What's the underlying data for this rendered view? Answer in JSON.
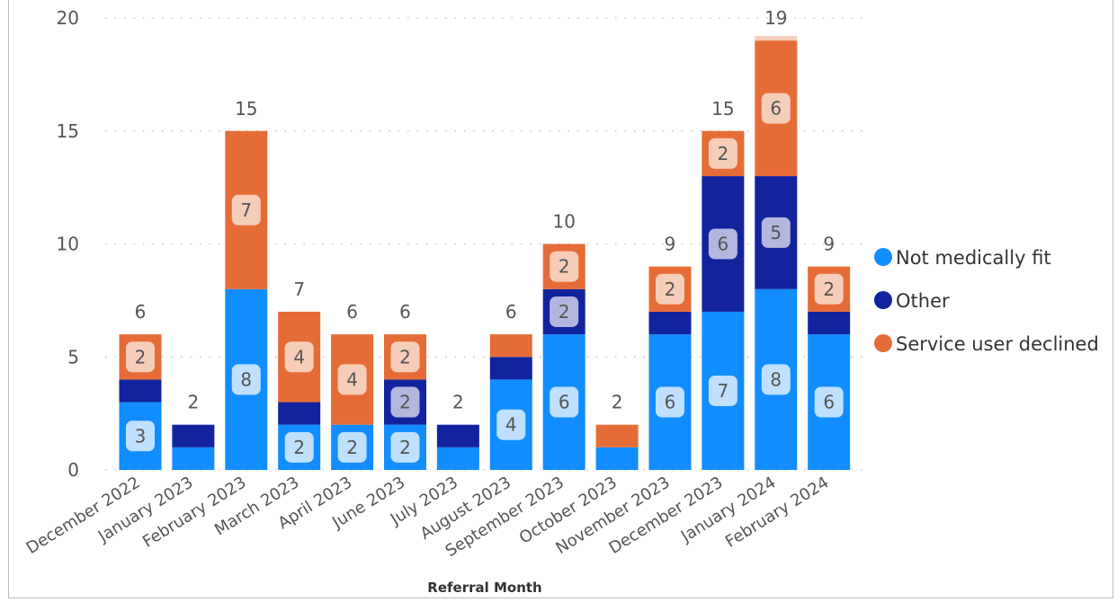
{
  "chart_data": {
    "type": "bar",
    "stacked": true,
    "title": "",
    "xlabel": "Referral Month",
    "ylabel": "",
    "ylim": [
      0,
      20
    ],
    "yticks": [
      0,
      5,
      10,
      15,
      20
    ],
    "grid": true,
    "legend_position": "right",
    "categories": [
      "December 2022",
      "January 2023",
      "February 2023",
      "March 2023",
      "April 2023",
      "June 2023",
      "July 2023",
      "August 2023",
      "September 2023",
      "October 2023",
      "November 2023",
      "December 2023",
      "January 2024",
      "February 2024"
    ],
    "series": [
      {
        "name": "Not medically fit",
        "color": "#118DFF",
        "values": [
          3,
          1,
          8,
          2,
          2,
          2,
          1,
          4,
          6,
          1,
          6,
          7,
          8,
          6
        ]
      },
      {
        "name": "Other",
        "color": "#12239E",
        "values": [
          1,
          1,
          0,
          1,
          0,
          2,
          1,
          1,
          2,
          0,
          1,
          6,
          5,
          1
        ]
      },
      {
        "name": "Service user declined",
        "color": "#E66C37",
        "values": [
          2,
          0,
          7,
          4,
          4,
          2,
          0,
          1,
          2,
          1,
          2,
          2,
          6,
          2
        ]
      }
    ],
    "extra_segment": {
      "color": "#F6CDB9",
      "values": [
        0,
        0,
        0,
        0,
        0,
        0,
        0,
        0,
        0,
        0,
        0,
        0,
        0.2,
        0
      ]
    },
    "totals": [
      6,
      2,
      15,
      7,
      6,
      6,
      2,
      6,
      10,
      2,
      9,
      15,
      19,
      9
    ],
    "data_labels": [
      [
        3,
        null,
        8,
        2,
        2,
        2,
        null,
        4,
        6,
        null,
        6,
        7,
        8,
        6
      ],
      [
        null,
        null,
        null,
        null,
        null,
        2,
        null,
        null,
        2,
        null,
        null,
        6,
        5,
        null
      ],
      [
        2,
        null,
        7,
        4,
        4,
        2,
        null,
        null,
        2,
        null,
        2,
        2,
        6,
        2
      ]
    ],
    "label_fills": [
      "#BFE0FF",
      "#B3B7DD",
      "#F6CDB9"
    ]
  }
}
